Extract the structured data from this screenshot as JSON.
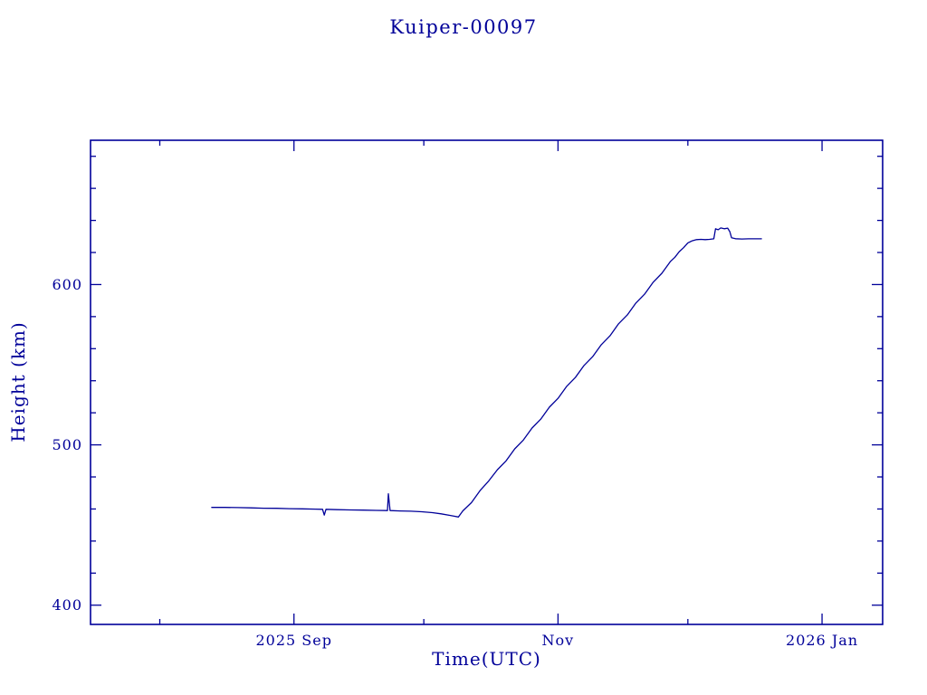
{
  "title": "Kuiper-00097",
  "colors": {
    "accent": "#000099",
    "background": "#ffffff"
  },
  "chart_data": {
    "type": "line",
    "title": "Kuiper-00097",
    "xlabel": "Time(UTC)",
    "ylabel": "Height (km)",
    "grid": false,
    "legend": "none",
    "line_color": "#000099",
    "x_unit": "days, 0 = axis start (mid-July 2025)",
    "xlim": [
      0,
      183
    ],
    "ylim": [
      388,
      690
    ],
    "x_major_ticks": [
      {
        "pos": 47,
        "label": "2025 Sep"
      },
      {
        "pos": 108,
        "label": "Nov"
      },
      {
        "pos": 169,
        "label": "2026 Jan"
      }
    ],
    "x_minor_ticks": [
      16,
      77,
      138
    ],
    "y_major_ticks": [
      {
        "pos": 400,
        "label": "400"
      },
      {
        "pos": 500,
        "label": "500"
      },
      {
        "pos": 600,
        "label": "600"
      }
    ],
    "y_minor_ticks": [
      420,
      440,
      460,
      480,
      520,
      540,
      560,
      580,
      620,
      640,
      660,
      680
    ],
    "points": [
      [
        28,
        461
      ],
      [
        31,
        461
      ],
      [
        34,
        460.9
      ],
      [
        37,
        460.7
      ],
      [
        40,
        460.5
      ],
      [
        43,
        460.4
      ],
      [
        46,
        460.2
      ],
      [
        49,
        460.1
      ],
      [
        52,
        459.9
      ],
      [
        53.6,
        459.8
      ],
      [
        54,
        456.2
      ],
      [
        54.4,
        459.8
      ],
      [
        57,
        459.6
      ],
      [
        60,
        459.4
      ],
      [
        63,
        459.3
      ],
      [
        66,
        459.1
      ],
      [
        68.6,
        459
      ],
      [
        68.8,
        469.5
      ],
      [
        69.2,
        459
      ],
      [
        71.5,
        458.8
      ],
      [
        74,
        458.6
      ],
      [
        76.5,
        458.3
      ],
      [
        79,
        457.7
      ],
      [
        81,
        457
      ],
      [
        83,
        456
      ],
      [
        84,
        455.5
      ],
      [
        85,
        455
      ],
      [
        86,
        458.8
      ],
      [
        88,
        464
      ],
      [
        90,
        471.5
      ],
      [
        92,
        477.5
      ],
      [
        94,
        484.5
      ],
      [
        96,
        490
      ],
      [
        98,
        497.5
      ],
      [
        100,
        503
      ],
      [
        102,
        510.5
      ],
      [
        104,
        516
      ],
      [
        106,
        523.5
      ],
      [
        108,
        529
      ],
      [
        110,
        536.5
      ],
      [
        112,
        542
      ],
      [
        114,
        549.5
      ],
      [
        116,
        555
      ],
      [
        118,
        562.5
      ],
      [
        120,
        568
      ],
      [
        122,
        575.5
      ],
      [
        124,
        581
      ],
      [
        126,
        588.5
      ],
      [
        128,
        594
      ],
      [
        130,
        601.5
      ],
      [
        132,
        607
      ],
      [
        134,
        614.5
      ],
      [
        135,
        617
      ],
      [
        136,
        620.5
      ],
      [
        137,
        623
      ],
      [
        138,
        626
      ],
      [
        139,
        627.3
      ],
      [
        140,
        628
      ],
      [
        141,
        628.2
      ],
      [
        142,
        628
      ],
      [
        143,
        628.2
      ],
      [
        144,
        628.5
      ],
      [
        144.4,
        634.8
      ],
      [
        145,
        634.2
      ],
      [
        145.6,
        635.3
      ],
      [
        146.4,
        634.8
      ],
      [
        147.2,
        635.2
      ],
      [
        147.7,
        633
      ],
      [
        148.1,
        629.2
      ],
      [
        149,
        628.6
      ],
      [
        150.5,
        628.4
      ],
      [
        152,
        628.5
      ],
      [
        155,
        628.5
      ]
    ]
  }
}
